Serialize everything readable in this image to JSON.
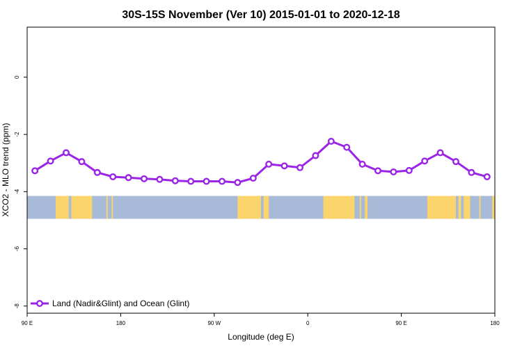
{
  "chart_data": {
    "type": "line",
    "title": "30S-15S November (Ver 10)   2015-01-01 to 2020-12-18",
    "xlabel": "Longitude (deg E)",
    "ylabel": "XCO2 - MLO trend (ppm)",
    "xlim": [
      90,
      450
    ],
    "ylim": [
      -8.25,
      1.75
    ],
    "x_ticks": [
      {
        "value": 90,
        "label": "90 E"
      },
      {
        "value": 162,
        "label": "180"
      },
      {
        "value": 234,
        "label": "90 W"
      },
      {
        "value": 306,
        "label": "0"
      },
      {
        "value": 378,
        "label": "90 E"
      },
      {
        "value": 450,
        "label": "180"
      }
    ],
    "y_ticks": [
      {
        "value": 0,
        "label": "0"
      },
      {
        "value": -2,
        "label": "-2"
      },
      {
        "value": -4,
        "label": "-4"
      },
      {
        "value": -6,
        "label": "-6"
      },
      {
        "value": -8,
        "label": "-8"
      }
    ],
    "land_band_y": [
      -4.15,
      -4.95
    ],
    "land_regions": [
      [
        112,
        122
      ],
      [
        124,
        140
      ],
      [
        151,
        152
      ],
      [
        155,
        156
      ],
      [
        252,
        270
      ],
      [
        272,
        276
      ],
      [
        318,
        342
      ],
      [
        346,
        347
      ],
      [
        350,
        352
      ],
      [
        398,
        420
      ],
      [
        422,
        424
      ],
      [
        426,
        431
      ],
      [
        438,
        439
      ],
      [
        448,
        450
      ]
    ],
    "colors": {
      "line": "#9a25e6",
      "ocean": "#a7bbd9",
      "land": "#fbd46c",
      "marker_fill": "#ffffff"
    },
    "series": [
      {
        "name": "Land (Nadir&Glint) and Ocean (Glint)",
        "x": [
          96,
          108,
          120,
          132,
          144,
          156,
          168,
          180,
          192,
          204,
          216,
          228,
          240,
          252,
          264,
          276,
          288,
          300,
          312,
          324,
          336,
          348,
          360,
          372,
          384,
          396,
          408,
          420,
          432,
          444
        ],
        "values": [
          -3.27,
          -2.93,
          -2.64,
          -2.95,
          -3.33,
          -3.48,
          -3.51,
          -3.55,
          -3.57,
          -3.62,
          -3.64,
          -3.64,
          -3.64,
          -3.68,
          -3.53,
          -3.04,
          -3.1,
          -3.16,
          -2.74,
          -2.24,
          -2.45,
          -3.04,
          -3.27,
          -3.31,
          -3.26,
          -2.93,
          -2.64,
          -2.95,
          -3.33,
          -3.48
        ]
      }
    ]
  }
}
